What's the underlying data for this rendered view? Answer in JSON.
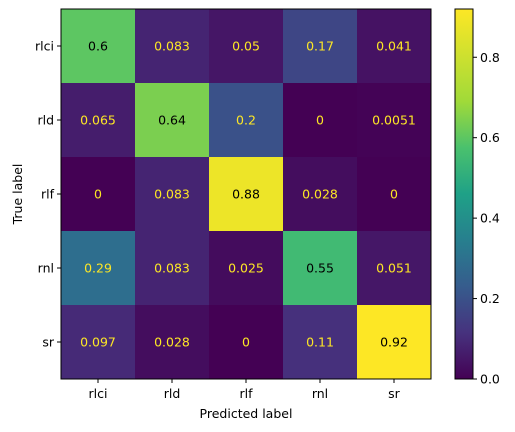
{
  "chart_data": {
    "type": "heatmap",
    "xlabel": "Predicted label",
    "ylabel": "True label",
    "x_categories": [
      "rlci",
      "rld",
      "rlf",
      "rnl",
      "sr"
    ],
    "y_categories": [
      "rlci",
      "rld",
      "rlf",
      "rnl",
      "sr"
    ],
    "values": [
      [
        0.6,
        0.083,
        0.05,
        0.17,
        0.041
      ],
      [
        0.065,
        0.64,
        0.2,
        0,
        0.0051
      ],
      [
        0,
        0.083,
        0.88,
        0.028,
        0
      ],
      [
        0.29,
        0.083,
        0.025,
        0.55,
        0.051
      ],
      [
        0.097,
        0.028,
        0,
        0.11,
        0.92
      ]
    ],
    "value_labels": [
      [
        "0.6",
        "0.083",
        "0.05",
        "0.17",
        "0.041"
      ],
      [
        "0.065",
        "0.64",
        "0.2",
        "0",
        "0.0051"
      ],
      [
        "0",
        "0.083",
        "0.88",
        "0.028",
        "0"
      ],
      [
        "0.29",
        "0.083",
        "0.025",
        "0.55",
        "0.051"
      ],
      [
        "0.097",
        "0.028",
        "0",
        "0.11",
        "0.92"
      ]
    ],
    "colormap": "viridis",
    "color_range": [
      0,
      0.92
    ],
    "colorbar_ticks": [
      0.0,
      0.2,
      0.4,
      0.6,
      0.8
    ],
    "colorbar_tick_labels": [
      "0.0",
      "0.2",
      "0.4",
      "0.6",
      "0.8"
    ],
    "text_color_dark": "#000000",
    "text_color_light": "#fde725",
    "grid": false
  }
}
